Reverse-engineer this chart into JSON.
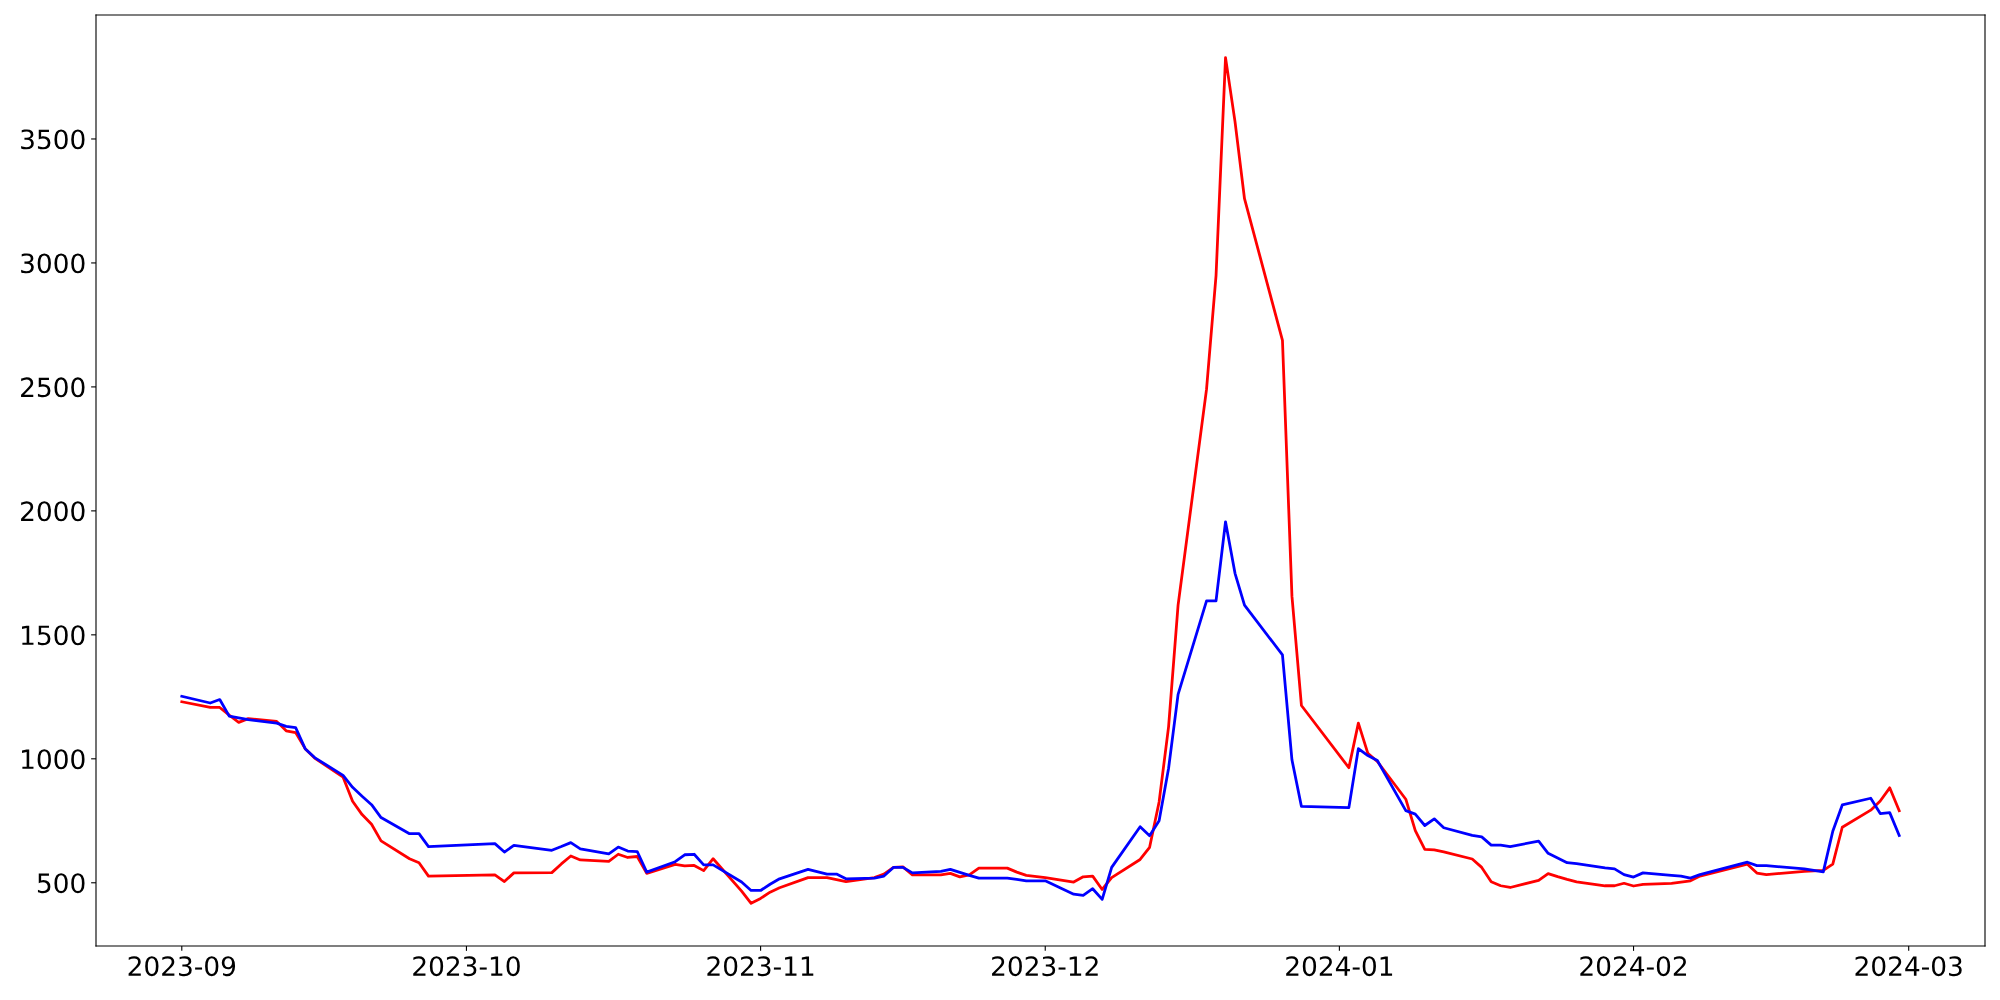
{
  "chart_data": {
    "type": "line",
    "x": [
      "2023-09-01",
      "2023-09-04",
      "2023-09-05",
      "2023-09-06",
      "2023-09-07",
      "2023-09-08",
      "2023-09-11",
      "2023-09-12",
      "2023-09-13",
      "2023-09-14",
      "2023-09-15",
      "2023-09-18",
      "2023-09-19",
      "2023-09-20",
      "2023-09-21",
      "2023-09-22",
      "2023-09-25",
      "2023-09-26",
      "2023-09-27",
      "2023-10-04",
      "2023-10-05",
      "2023-10-06",
      "2023-10-10",
      "2023-10-11",
      "2023-10-12",
      "2023-10-13",
      "2023-10-16",
      "2023-10-17",
      "2023-10-18",
      "2023-10-19",
      "2023-10-20",
      "2023-10-23",
      "2023-10-24",
      "2023-10-25",
      "2023-10-26",
      "2023-10-27",
      "2023-10-30",
      "2023-10-31",
      "2023-11-01",
      "2023-11-02",
      "2023-11-03",
      "2023-11-06",
      "2023-11-08",
      "2023-11-09",
      "2023-11-10",
      "2023-11-13",
      "2023-11-14",
      "2023-11-15",
      "2023-11-16",
      "2023-11-17",
      "2023-11-20",
      "2023-11-21",
      "2023-11-22",
      "2023-11-23",
      "2023-11-24",
      "2023-11-27",
      "2023-11-28",
      "2023-11-29",
      "2023-12-01",
      "2023-12-04",
      "2023-12-05",
      "2023-12-06",
      "2023-12-07",
      "2023-12-08",
      "2023-12-11",
      "2023-12-12",
      "2023-12-13",
      "2023-12-14",
      "2023-12-15",
      "2023-12-18",
      "2023-12-19",
      "2023-12-20",
      "2023-12-21",
      "2023-12-22",
      "2023-12-26",
      "2023-12-27",
      "2023-12-28",
      "2024-01-02",
      "2024-01-03",
      "2024-01-04",
      "2024-01-05",
      "2024-01-08",
      "2024-01-09",
      "2024-01-10",
      "2024-01-11",
      "2024-01-12",
      "2024-01-15",
      "2024-01-16",
      "2024-01-17",
      "2024-01-18",
      "2024-01-19",
      "2024-01-22",
      "2024-01-23",
      "2024-01-24",
      "2024-01-25",
      "2024-01-26",
      "2024-01-29",
      "2024-01-30",
      "2024-01-31",
      "2024-02-01",
      "2024-02-02",
      "2024-02-05",
      "2024-02-06",
      "2024-02-07",
      "2024-02-08",
      "2024-02-13",
      "2024-02-14",
      "2024-02-15",
      "2024-02-19",
      "2024-02-21",
      "2024-02-22",
      "2024-02-23",
      "2024-02-26",
      "2024-02-27",
      "2024-02-28",
      "2024-02-29"
    ],
    "series": [
      {
        "color": "#ff0000",
        "values": [
          1230,
          1207,
          1207,
          1176,
          1147,
          1162,
          1151,
          1113,
          1106,
          1041,
          1003,
          926,
          829,
          775,
          736,
          669,
          597,
          581,
          527,
          532,
          505,
          540,
          541,
          576,
          608,
          592,
          586,
          615,
          602,
          606,
          538,
          574,
          568,
          570,
          549,
          597,
          466,
          417,
          437,
          462,
          480,
          521,
          521,
          513,
          505,
          521,
          535,
          562,
          564,
          532,
          532,
          538,
          524,
          532,
          559,
          559,
          543,
          530,
          521,
          503,
          524,
          527,
          473,
          521,
          594,
          643,
          826,
          1130,
          1620,
          2491,
          2949,
          3828,
          3570,
          3259,
          2688,
          1656,
          1215,
          964,
          1144,
          1022,
          989,
          837,
          710,
          635,
          633,
          625,
          596,
          562,
          504,
          488,
          481,
          510,
          537,
          525,
          514,
          504,
          488,
          488,
          498,
          487,
          494,
          498,
          503,
          508,
          527,
          575,
          539,
          533,
          546,
          550,
          575,
          724,
          793,
          830,
          883,
          791
        ]
      },
      {
        "color": "#0000ff",
        "values": [
          1252,
          1225,
          1239,
          1172,
          1165,
          1158,
          1144,
          1131,
          1126,
          1041,
          1005,
          933,
          885,
          849,
          815,
          763,
          698,
          698,
          646,
          658,
          624,
          651,
          631,
          646,
          662,
          637,
          617,
          644,
          628,
          626,
          543,
          585,
          613,
          615,
          572,
          572,
          503,
          469,
          469,
          494,
          516,
          554,
          535,
          535,
          516,
          519,
          527,
          562,
          562,
          540,
          546,
          554,
          542,
          530,
          519,
          519,
          514,
          508,
          508,
          454,
          449,
          476,
          433,
          562,
          726,
          690,
          750,
          962,
          1260,
          1637,
          1637,
          1956,
          1748,
          1620,
          1419,
          996,
          808,
          803,
          1041,
          1013,
          993,
          791,
          777,
          731,
          758,
          722,
          691,
          685,
          652,
          652,
          646,
          668,
          619,
          600,
          581,
          577,
          560,
          556,
          533,
          523,
          540,
          530,
          527,
          519,
          533,
          583,
          569,
          569,
          556,
          544,
          708,
          814,
          841,
          779,
          783,
          691
        ]
      }
    ],
    "xlim": [
      "2023-08-22T23:00",
      "2024-03-09T01:00"
    ],
    "xticks": [
      {
        "value": "2023-09-01",
        "label": "2023-09"
      },
      {
        "value": "2023-10-01",
        "label": "2023-10"
      },
      {
        "value": "2023-11-01",
        "label": "2023-11"
      },
      {
        "value": "2023-12-01",
        "label": "2023-12"
      },
      {
        "value": "2024-01-01",
        "label": "2024-01"
      },
      {
        "value": "2024-02-01",
        "label": "2024-02"
      },
      {
        "value": "2024-03-01",
        "label": "2024-03"
      }
    ],
    "ylim": [
      245,
      4000
    ],
    "yticks": [
      500,
      1000,
      1500,
      2000,
      2500,
      3000,
      3500
    ],
    "line_style": "solid"
  }
}
